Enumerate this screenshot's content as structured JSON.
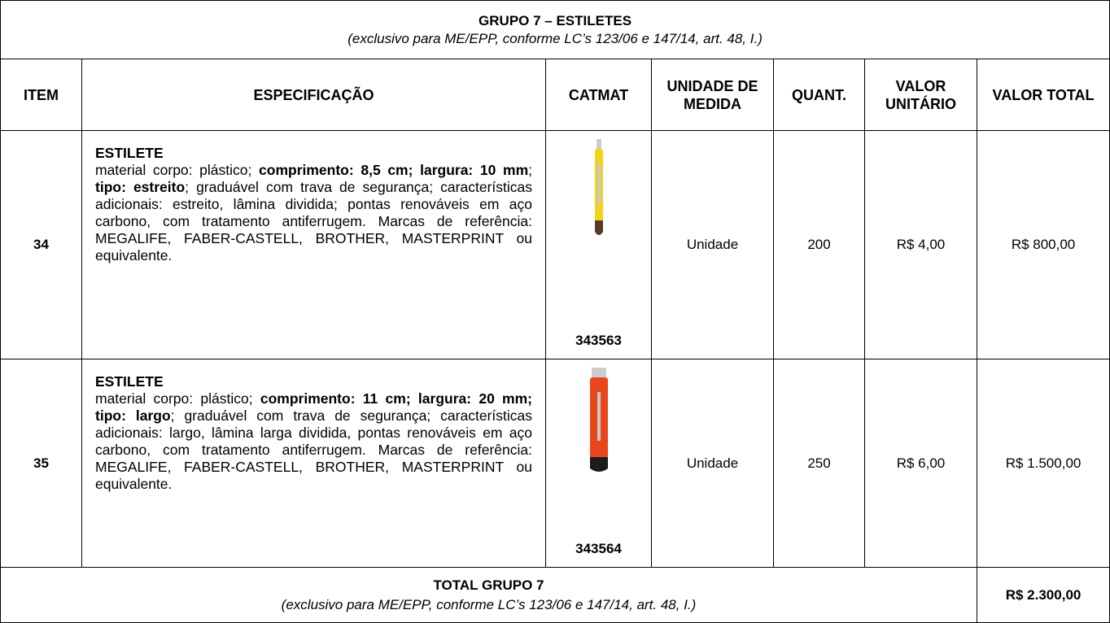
{
  "header": {
    "title": "GRUPO 7 – ESTILETES",
    "subtitle": "(exclusivo para ME/EPP, conforme LC’s 123/06 e 147/14, art. 48, I.)"
  },
  "table": {
    "columns": [
      "ITEM",
      "ESPECIFICAÇÃO",
      "CATMAT",
      "UNIDADE DE MEDIDA",
      "QUANT.",
      "VALOR UNITÁRIO",
      "VALOR TOTAL"
    ],
    "rows": [
      {
        "item": "34",
        "name": "ESTILETE",
        "spec": [
          {
            "text": "material corpo: plástico; ",
            "bold": false
          },
          {
            "text": "comprimento: 8,5 cm; largura: 10 mm",
            "bold": true
          },
          {
            "text": "; ",
            "bold": false
          },
          {
            "text": "tipo: estreito",
            "bold": true
          },
          {
            "text": "; graduável com trava de segurança; características adicionais: estreito, lâmina dividida; pontas renováveis em aço carbono, com tratamento antiferrugem. Marcas de referência: MEGALIFE, FABER-CASTELL, BROTHER, MASTERPRINT ou equivalente.",
            "bold": false
          }
        ],
        "catmat": "343563",
        "unit": "Unidade",
        "quantity": "200",
        "unit_price": "R$ 4,00",
        "total": "R$ 800,00"
      },
      {
        "item": "35",
        "name": "ESTILETE",
        "spec": [
          {
            "text": "material corpo: plástico; ",
            "bold": false
          },
          {
            "text": "comprimento: 11 cm; largura: 20 mm; tipo: largo",
            "bold": true
          },
          {
            "text": "; graduável com trava de segurança; características adicionais: largo, lâmina larga dividida, pontas renováveis em aço carbono, com tratamento antiferrugem.  Marcas de referência: MEGALIFE, FABER-CASTELL, BROTHER, MASTERPRINT ou equivalente.",
            "bold": false
          }
        ],
        "catmat": "343564",
        "unit": "Unidade",
        "quantity": "250",
        "unit_price": "R$ 6,00",
        "total": "R$ 1.500,00"
      }
    ]
  },
  "footer": {
    "title": "TOTAL GRUPO 7",
    "subtitle": "(exclusivo para ME/EPP, conforme LC’s 123/06 e 147/14, art. 48, I.)",
    "total": "R$ 2.300,00"
  }
}
